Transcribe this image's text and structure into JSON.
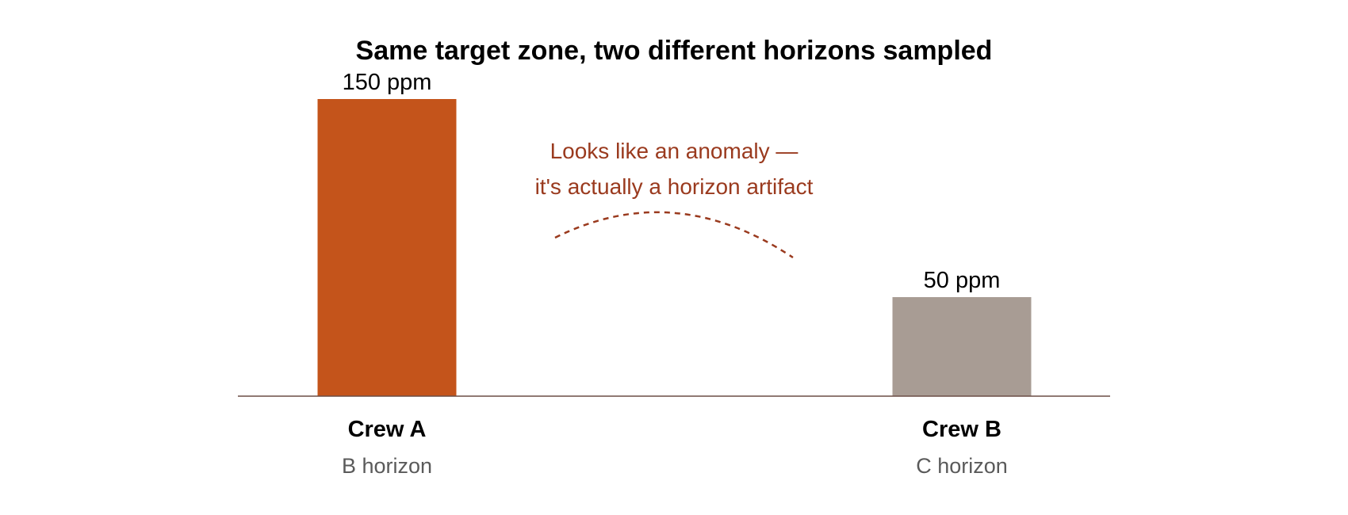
{
  "chart_data": {
    "type": "bar",
    "title": "Same target zone, two different horizons sampled",
    "categories": [
      "Crew A",
      "Crew B"
    ],
    "subcategories": [
      "B horizon",
      "C horizon"
    ],
    "values": [
      150,
      50
    ],
    "value_labels": [
      "150 ppm",
      "50 ppm"
    ],
    "unit": "ppm",
    "ylim": [
      0,
      150
    ],
    "grid": false,
    "legend": "none",
    "colors": [
      "#c4541b",
      "#a89c94"
    ],
    "baseline_color": "#6b4f46",
    "annotation": {
      "lines": [
        "Looks like an anomaly —",
        "it's actually a horizon artifact"
      ],
      "color": "#9a3a1e"
    }
  }
}
